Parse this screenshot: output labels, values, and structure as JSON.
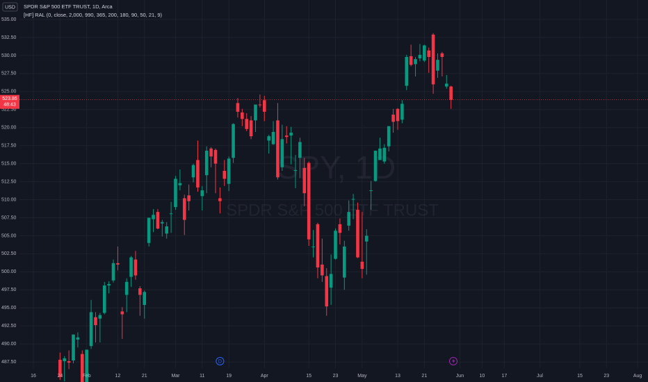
{
  "chart_data": {
    "type": "candlestick",
    "title": "SPDR S&P 500 ETF TRUST, 1D, Arca",
    "indicator": "[HF] RAL (0, close, 2,000, 990, 365, 200, 180, 90, 50, 21, 9)",
    "currency": "USD",
    "watermark": "SPY, 1D",
    "watermark_subtitle": "SPDR S&P 500 ETF TRUST",
    "last_price": 523.86,
    "countdown": "48:43",
    "up_color": "#089981",
    "down_color": "#f23645",
    "grid": true,
    "x": [
      6,
      7,
      8,
      9,
      10,
      11,
      12,
      13,
      14,
      15,
      16,
      17,
      18,
      19,
      20,
      21,
      22,
      23,
      24,
      25,
      26,
      27,
      28,
      29,
      30,
      31,
      32,
      33,
      34,
      35,
      36,
      37,
      38,
      39,
      40,
      41,
      42,
      43,
      44,
      45,
      46,
      47,
      48,
      49,
      50,
      51,
      52,
      53,
      54,
      55,
      56,
      57,
      58,
      59,
      60,
      61,
      62,
      63,
      64,
      65,
      66,
      67,
      68,
      69,
      70,
      71,
      72,
      73,
      74,
      75,
      76,
      77,
      78,
      79,
      80,
      81,
      82,
      83,
      84,
      85,
      86,
      87,
      88,
      89,
      90,
      91,
      92,
      93,
      94
    ],
    "open": [
      487.8,
      487.6,
      487.6,
      487.7,
      490.6,
      488.6,
      484.6,
      489.7,
      493.7,
      493.5,
      494.3,
      498.1,
      498.8,
      501.2,
      494.5,
      496.8,
      499.3,
      501.7,
      497.7,
      495.4,
      504.0,
      507.3,
      508.3,
      506.7,
      505.3,
      508.1,
      508.98,
      512.0,
      510.2,
      510.6,
      513.1,
      515.5,
      510.5,
      513.4,
      517.1,
      516.9,
      510.2,
      514.0,
      512.2,
      515.8,
      523.4,
      522.1,
      521.2,
      521.0,
      521.0,
      523.2,
      523.8,
      518.2,
      517.7,
      521.0,
      514.5,
      518.9,
      518.9,
      514.0,
      515.8,
      514.4,
      515.1,
      503.5,
      506.6,
      501.0,
      499.4,
      497.8,
      501.8,
      506.6,
      499.2,
      506.4,
      510.1,
      508.6,
      501.4,
      504.2,
      511.2,
      512.6,
      515.5,
      515.3,
      517.4,
      521.8,
      522.6,
      521.1,
      525.8,
      529.9,
      528.8,
      529.6,
      529.3,
      530.7,
      532.9,
      527.9,
      530.3,
      525.7,
      525.7
    ],
    "high": [
      488.8,
      488.3,
      489.1,
      491.3,
      491.6,
      489.1,
      489.2,
      496.1,
      494.4,
      494.3,
      498.6,
      498.7,
      501.7,
      503.5,
      495.1,
      499.1,
      502.2,
      502.9,
      498.0,
      497.4,
      507.5,
      508.7,
      508.7,
      507.2,
      506.9,
      509.7,
      513.3,
      514.2,
      510.7,
      512.1,
      515.0,
      518.2,
      511.9,
      517.4,
      517.3,
      517.1,
      511.7,
      515.5,
      516.0,
      520.6,
      524.1,
      522.6,
      522.0,
      521.6,
      523.2,
      524.6,
      524.4,
      519.0,
      520.9,
      523.4,
      520.4,
      520.2,
      520.1,
      516.2,
      518.6,
      515.8,
      515.3,
      505.8,
      506.8,
      504.6,
      500.5,
      502.4,
      506.0,
      507.4,
      504.3,
      509.9,
      510.8,
      509.6,
      508.3,
      505.9,
      512.6,
      516.8,
      518.6,
      517.7,
      520.2,
      522.6,
      522.7,
      523.8,
      530.1,
      531.5,
      529.8,
      531.6,
      531.5,
      531.1,
      533.1,
      530.3,
      530.5,
      527.3,
      525.8
    ],
    "low": [
      485.0,
      484.8,
      486.5,
      487.3,
      489.5,
      482.9,
      483.8,
      489.3,
      490.2,
      490.2,
      494.1,
      497.0,
      498.5,
      500.2,
      490.7,
      494.4,
      497.9,
      498.9,
      493.9,
      493.5,
      503.5,
      505.5,
      505.9,
      504.9,
      504.6,
      505.4,
      508.6,
      511.3,
      505.1,
      508.5,
      512.4,
      511.1,
      508.5,
      510.9,
      514.5,
      510.9,
      508.1,
      511.9,
      511.2,
      515.1,
      521.4,
      520.2,
      519.5,
      518.4,
      519.4,
      522.8,
      520.9,
      516.4,
      517.6,
      512.8,
      514.0,
      517.8,
      514.9,
      511.6,
      513.0,
      509.1,
      503.6,
      502.0,
      499.1,
      498.6,
      493.9,
      495.4,
      501.7,
      503.8,
      497.5,
      505.7,
      507.3,
      501.9,
      499.1,
      499.6,
      508.6,
      512.5,
      515.5,
      515.0,
      516.7,
      519.3,
      519.7,
      520.6,
      525.2,
      528.5,
      527.1,
      529.2,
      529.1,
      527.6,
      524.7,
      526.9,
      527.1,
      525.4,
      522.6
    ],
    "close": [
      485.4,
      488.0,
      487.4,
      491.3,
      490.9,
      482.9,
      489.2,
      494.4,
      492.6,
      494.0,
      498.1,
      498.3,
      501.2,
      501.0,
      494.1,
      498.6,
      502.0,
      499.5,
      496.8,
      497.2,
      507.5,
      507.9,
      506.0,
      506.9,
      506.3,
      508.1,
      512.9,
      512.3,
      507.2,
      509.8,
      514.8,
      511.7,
      511.3,
      516.8,
      516.0,
      515.0,
      509.8,
      512.9,
      515.7,
      520.5,
      522.2,
      521.2,
      519.8,
      518.8,
      523.2,
      523.1,
      522.2,
      518.8,
      519.4,
      513.1,
      518.4,
      518.7,
      519.3,
      514.1,
      518.0,
      510.9,
      504.5,
      503.5,
      500.6,
      499.5,
      495.2,
      499.7,
      505.7,
      505.4,
      503.5,
      508.3,
      510.1,
      502.0,
      500.4,
      505.0,
      511.3,
      516.8,
      517.1,
      517.2,
      520.2,
      520.8,
      520.9,
      523.3,
      529.8,
      528.7,
      529.5,
      530.1,
      531.4,
      529.8,
      526.0,
      529.4,
      529.8,
      526.1,
      523.86
    ],
    "events": [
      {
        "x": 42,
        "label": "D"
      }
    ],
    "xlim": [
      -3.13,
      138.34
    ],
    "xticks": [
      {
        "value": 0,
        "label": "16"
      },
      {
        "value": 6,
        "label": "24"
      },
      {
        "value": 12,
        "label": "Feb"
      },
      {
        "value": 19,
        "label": "12"
      },
      {
        "value": 25,
        "label": "21"
      },
      {
        "value": 32,
        "label": "Mar"
      },
      {
        "value": 38,
        "label": "11"
      },
      {
        "value": 44,
        "label": "19"
      },
      {
        "value": 52,
        "label": "Apr"
      },
      {
        "value": 62,
        "label": "15"
      },
      {
        "value": 68,
        "label": "23"
      },
      {
        "value": 74,
        "label": "May"
      },
      {
        "value": 82,
        "label": "13"
      },
      {
        "value": 88,
        "label": "21"
      },
      {
        "value": 96,
        "label": "Jun"
      },
      {
        "value": 101,
        "label": "10"
      },
      {
        "value": 106,
        "label": "17"
      },
      {
        "value": 114,
        "label": "Jul"
      },
      {
        "value": 123,
        "label": "15"
      },
      {
        "value": 129,
        "label": "23"
      },
      {
        "value": 136,
        "label": "Aug"
      }
    ],
    "ylim": [
      486.64,
      537.7
    ],
    "yticks": [
      {
        "value": 487.5,
        "label": "487.50"
      },
      {
        "value": 490,
        "label": "490.00"
      },
      {
        "value": 492.5,
        "label": "492.50"
      },
      {
        "value": 495,
        "label": "495.00"
      },
      {
        "value": 497.5,
        "label": "497.50"
      },
      {
        "value": 500,
        "label": "500.00"
      },
      {
        "value": 502.5,
        "label": "502.50"
      },
      {
        "value": 505,
        "label": "505.00"
      },
      {
        "value": 507.5,
        "label": "507.50"
      },
      {
        "value": 510,
        "label": "510.00"
      },
      {
        "value": 512.5,
        "label": "512.50"
      },
      {
        "value": 515,
        "label": "515.00"
      },
      {
        "value": 517.5,
        "label": "517.50"
      },
      {
        "value": 520,
        "label": "520.00"
      },
      {
        "value": 522.5,
        "label": "522.50"
      },
      {
        "value": 525,
        "label": "525.00"
      },
      {
        "value": 527.5,
        "label": "527.50"
      },
      {
        "value": 530,
        "label": "530.00"
      },
      {
        "value": 532.5,
        "label": "532.50"
      },
      {
        "value": 535,
        "label": "535.00"
      }
    ]
  }
}
